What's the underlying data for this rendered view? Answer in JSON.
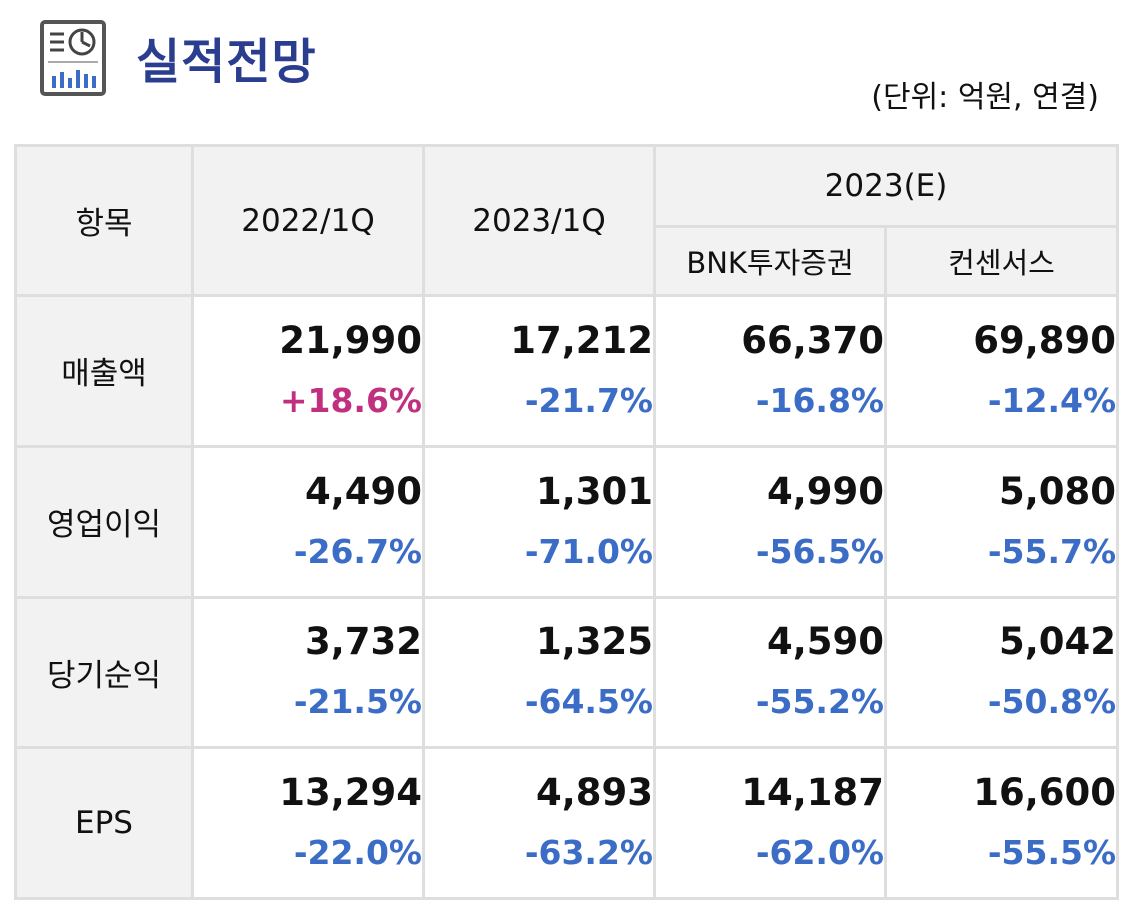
{
  "header": {
    "title": "실적전망",
    "unit": "(단위: 억원, 연결)",
    "icon": "report-chart-icon"
  },
  "colors": {
    "title": "#2b3d8f",
    "negative": "#3b6cc6",
    "positive": "#c0307f",
    "header_bg": "#f2f2f2",
    "border": "#dedede"
  },
  "table": {
    "headers": {
      "item": "항목",
      "col1": "2022/1Q",
      "col2": "2023/1Q",
      "group": "2023(E)",
      "sub1": "BNK투자증권",
      "sub2": "컨센서스"
    },
    "rows": [
      {
        "label": "매출액",
        "cells": [
          {
            "value": "21,990",
            "change": "+18.6%",
            "sign": "pos"
          },
          {
            "value": "17,212",
            "change": "-21.7%",
            "sign": "neg"
          },
          {
            "value": "66,370",
            "change": "-16.8%",
            "sign": "neg"
          },
          {
            "value": "69,890",
            "change": "-12.4%",
            "sign": "neg"
          }
        ]
      },
      {
        "label": "영업이익",
        "cells": [
          {
            "value": "4,490",
            "change": "-26.7%",
            "sign": "neg"
          },
          {
            "value": "1,301",
            "change": "-71.0%",
            "sign": "neg"
          },
          {
            "value": "4,990",
            "change": "-56.5%",
            "sign": "neg"
          },
          {
            "value": "5,080",
            "change": "-55.7%",
            "sign": "neg"
          }
        ]
      },
      {
        "label": "당기순익",
        "cells": [
          {
            "value": "3,732",
            "change": "-21.5%",
            "sign": "neg"
          },
          {
            "value": "1,325",
            "change": "-64.5%",
            "sign": "neg"
          },
          {
            "value": "4,590",
            "change": "-55.2%",
            "sign": "neg"
          },
          {
            "value": "5,042",
            "change": "-50.8%",
            "sign": "neg"
          }
        ]
      },
      {
        "label": "EPS",
        "cells": [
          {
            "value": "13,294",
            "change": "-22.0%",
            "sign": "neg"
          },
          {
            "value": "4,893",
            "change": "-63.2%",
            "sign": "neg"
          },
          {
            "value": "14,187",
            "change": "-62.0%",
            "sign": "neg"
          },
          {
            "value": "16,600",
            "change": "-55.5%",
            "sign": "neg"
          }
        ]
      }
    ]
  }
}
